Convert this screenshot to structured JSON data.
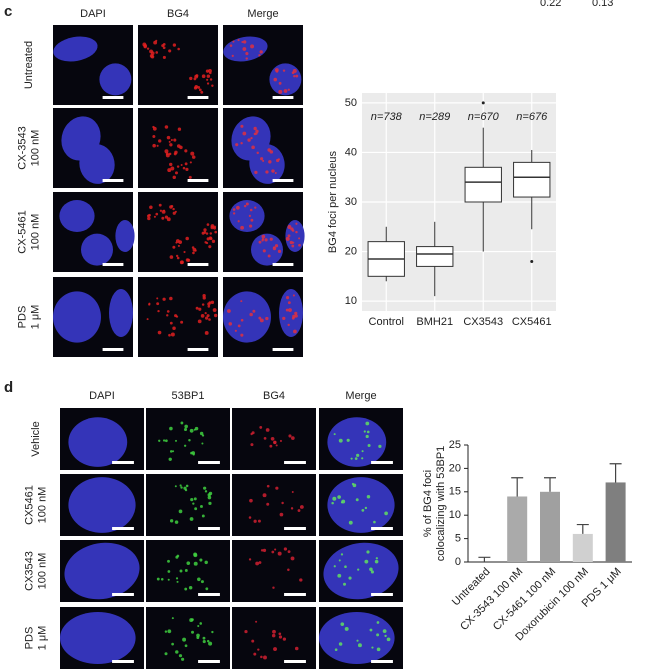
{
  "corner_text": [
    "0.22",
    "0.13"
  ],
  "panel_c": {
    "label": "c",
    "columns": [
      "DAPI",
      "BG4",
      "Merge"
    ],
    "rows": [
      [
        "Untreated"
      ],
      [
        "CX-3543",
        "100 nM"
      ],
      [
        "CX-5461",
        "100 nM"
      ],
      [
        "PDS",
        "1 μM"
      ]
    ]
  },
  "panel_d": {
    "label": "d",
    "columns": [
      "DAPI",
      "53BP1",
      "BG4",
      "Merge"
    ],
    "rows": [
      [
        "Vehicle"
      ],
      [
        "CX5461",
        "100 nM"
      ],
      [
        "CX3543",
        "100 nM"
      ],
      [
        "PDS",
        "1 μM"
      ]
    ]
  },
  "chart_data": [
    {
      "type": "box",
      "ylabel": "BG4 foci per nucleus",
      "categories": [
        "Control",
        "BMH21",
        "CX3543",
        "CX5461"
      ],
      "whisker_low": [
        14,
        11,
        20,
        24.5
      ],
      "q1": [
        15,
        17,
        30,
        31
      ],
      "median": [
        18.5,
        19.5,
        34,
        35
      ],
      "q3": [
        22,
        21,
        37,
        38
      ],
      "whisker_high": [
        25,
        26,
        45,
        40.5
      ],
      "outliers": [
        [],
        [],
        [
          50
        ],
        [
          18
        ]
      ],
      "annotations": [
        "n=738",
        "n=289",
        "n=670",
        "n=676"
      ],
      "ylim": [
        8,
        52
      ],
      "yticks": [
        10,
        20,
        30,
        40,
        50
      ],
      "grid": true
    },
    {
      "type": "bar",
      "ylabel_lines": [
        "% of  BG4 foci",
        "colocalizing with 53BP1"
      ],
      "categories": [
        "Untreated",
        "CX-3543 100 nM",
        "CX-5461 100 nM",
        "Doxorubicin 100 nM",
        "PDS 1 μM"
      ],
      "values": [
        0,
        14,
        15,
        6,
        17
      ],
      "errors": [
        1,
        4,
        3,
        2,
        4
      ],
      "colors": [
        "#999999",
        "#aaaaaa",
        "#a0a0a0",
        "#d0d0d0",
        "#7f7f7f"
      ],
      "ylim": [
        0,
        25
      ],
      "yticks": [
        0,
        5,
        10,
        15,
        20,
        25
      ]
    }
  ]
}
